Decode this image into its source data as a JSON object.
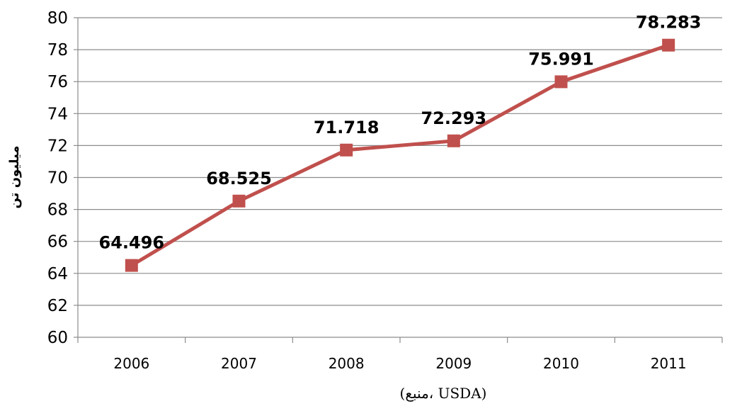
{
  "chart_data": {
    "type": "line",
    "title": "",
    "xlabel": "(منبع، USDA)",
    "ylabel": "میلیون تن",
    "categories": [
      "2006",
      "2007",
      "2008",
      "2009",
      "2010",
      "2011"
    ],
    "series": [
      {
        "values": [
          64.496,
          68.525,
          71.718,
          72.293,
          75.991,
          78.283
        ],
        "labels": [
          "64.496",
          "68.525",
          "71.718",
          "72.293",
          "75.991",
          "78.283"
        ],
        "color": "#c0504d"
      }
    ],
    "ylim": [
      60,
      80
    ],
    "yticks": [
      "60",
      "62",
      "64",
      "66",
      "68",
      "70",
      "72",
      "74",
      "76",
      "78",
      "80"
    ],
    "grid": true,
    "legend": "none",
    "marker": "square"
  }
}
